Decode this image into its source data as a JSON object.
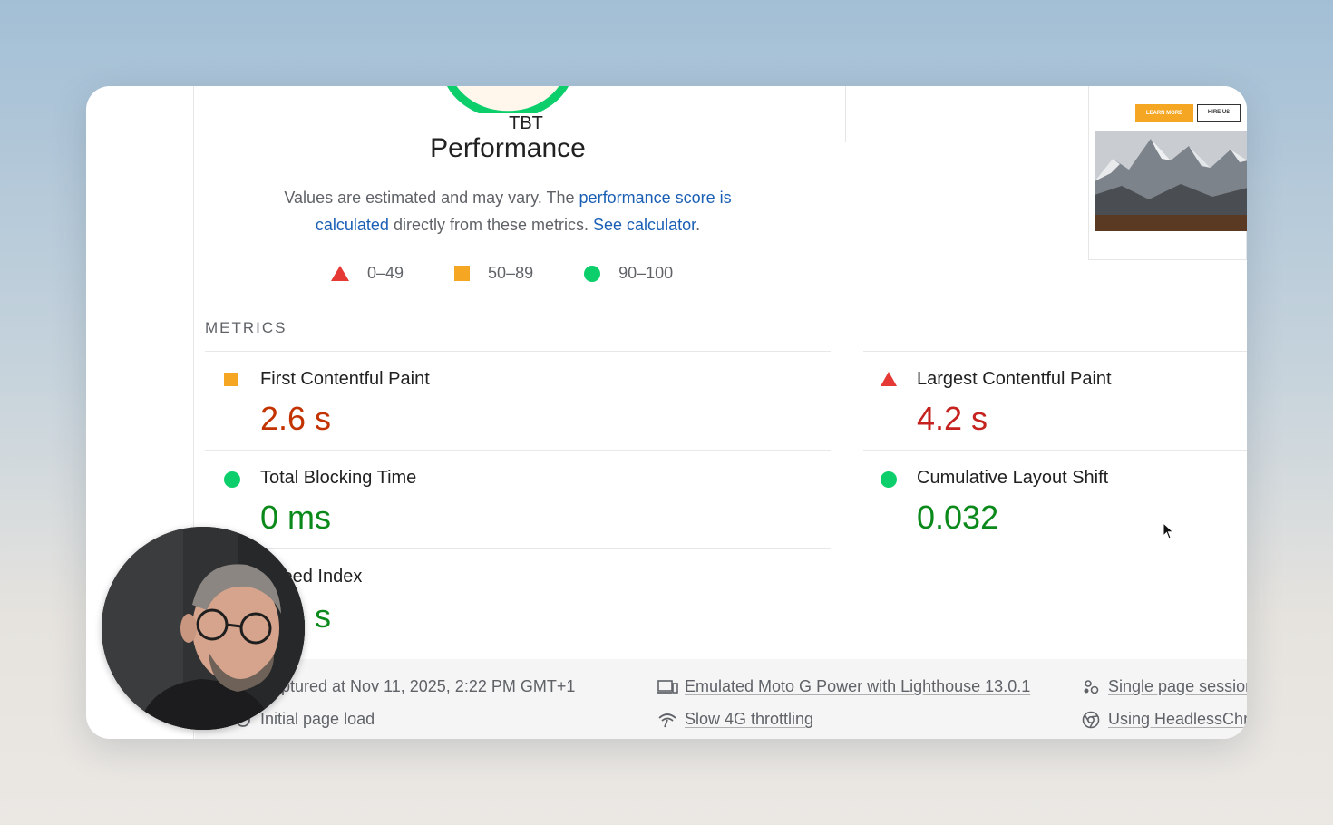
{
  "gauge": {
    "metric_label": "TBT",
    "title": "Performance",
    "accent": "#0cce6b"
  },
  "description": {
    "prefix": "Values are estimated and may vary. The ",
    "link1": "performance score is calculated",
    "middle": " directly from these metrics. ",
    "link2": "See calculator",
    "suffix": "."
  },
  "legend": [
    {
      "shape": "triangle-icon",
      "range": "0–49",
      "color": "#e53935"
    },
    {
      "shape": "square-icon",
      "range": "50–89",
      "color": "#f5a623"
    },
    {
      "shape": "circle-icon",
      "range": "90–100",
      "color": "#0cce6b"
    }
  ],
  "metrics_heading": "METRICS",
  "metrics": {
    "fcp": {
      "name": "First Contentful Paint",
      "value": "2.6 s",
      "rating": "average"
    },
    "lcp": {
      "name": "Largest Contentful Paint",
      "value": "4.2 s",
      "rating": "fail"
    },
    "tbt": {
      "name": "Total Blocking Time",
      "value": "0 ms",
      "rating": "pass"
    },
    "cls": {
      "name": "Cumulative Layout Shift",
      "value": "0.032",
      "rating": "pass"
    },
    "si": {
      "name": "Speed Index",
      "value": "1.4 s",
      "rating": "pass"
    }
  },
  "thumbnail": {
    "learn_more": "LEARN MORE",
    "hire_us": "HIRE US"
  },
  "footer": {
    "captured": "Captured at Nov 11, 2025, 2:22 PM GMT+1",
    "page_load": "Initial page load",
    "device": "Emulated Moto G Power with Lighthouse 13.0.1",
    "throttling": "Slow 4G throttling",
    "session": "Single page session",
    "browser": "Using HeadlessChromium"
  }
}
